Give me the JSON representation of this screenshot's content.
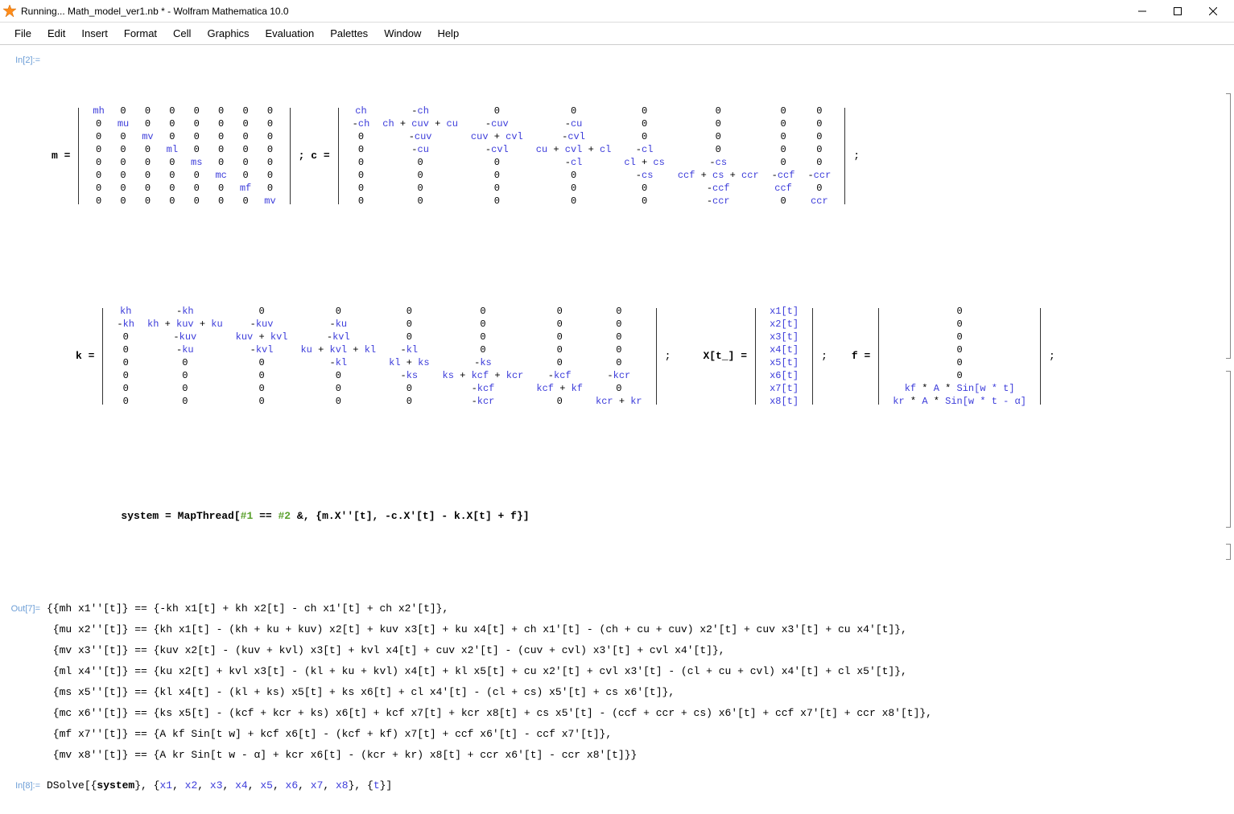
{
  "window": {
    "title": "Running... Math_model_ver1.nb * - Wolfram Mathematica 10.0",
    "icon_color": "#ff8c1a"
  },
  "menubar": [
    "File",
    "Edit",
    "Insert",
    "Format",
    "Cell",
    "Graphics",
    "Evaluation",
    "Palettes",
    "Window",
    "Help"
  ],
  "cell_labels": {
    "in2": "In[2]:=",
    "out7": "Out[7]=",
    "in8": "In[8]:="
  },
  "colors": {
    "label": "#6b9dd6",
    "symbol": "#3c3cda",
    "text": "#000000"
  },
  "matrices": {
    "m": {
      "diag": [
        "mh",
        "mu",
        "mv",
        "ml",
        "ms",
        "mc",
        "mf",
        "mv"
      ],
      "rows": 8,
      "cols": 8
    },
    "c": [
      [
        "ch",
        "-ch",
        "0",
        "0",
        "0",
        "0",
        "0",
        "0"
      ],
      [
        "-ch",
        "ch + cuv + cu",
        "-cuv",
        "-cu",
        "0",
        "0",
        "0",
        "0"
      ],
      [
        "0",
        "-cuv",
        "cuv + cvl",
        "-cvl",
        "0",
        "0",
        "0",
        "0"
      ],
      [
        "0",
        "-cu",
        "-cvl",
        "cu + cvl + cl",
        "-cl",
        "0",
        "0",
        "0"
      ],
      [
        "0",
        "0",
        "0",
        "-cl",
        "cl + cs",
        "-cs",
        "0",
        "0"
      ],
      [
        "0",
        "0",
        "0",
        "0",
        "-cs",
        "ccf + cs + ccr",
        "-ccf",
        "-ccr"
      ],
      [
        "0",
        "0",
        "0",
        "0",
        "0",
        "-ccf",
        "ccf",
        "0"
      ],
      [
        "0",
        "0",
        "0",
        "0",
        "0",
        "-ccr",
        "0",
        "ccr"
      ]
    ],
    "k": [
      [
        "kh",
        "-kh",
        "0",
        "0",
        "0",
        "0",
        "0",
        "0"
      ],
      [
        "-kh",
        "kh + kuv + ku",
        "-kuv",
        "-ku",
        "0",
        "0",
        "0",
        "0"
      ],
      [
        "0",
        "-kuv",
        "kuv + kvl",
        "-kvl",
        "0",
        "0",
        "0",
        "0"
      ],
      [
        "0",
        "-ku",
        "-kvl",
        "ku + kvl + kl",
        "-kl",
        "0",
        "0",
        "0"
      ],
      [
        "0",
        "0",
        "0",
        "-kl",
        "kl + ks",
        "-ks",
        "0",
        "0"
      ],
      [
        "0",
        "0",
        "0",
        "0",
        "-ks",
        "ks + kcf + kcr",
        "-kcf",
        "-kcr"
      ],
      [
        "0",
        "0",
        "0",
        "0",
        "0",
        "-kcf",
        "kcf + kf",
        "0"
      ],
      [
        "0",
        "0",
        "0",
        "0",
        "0",
        "-kcr",
        "0",
        "kcr + kr"
      ]
    ],
    "X": [
      "x1[t]",
      "x2[t]",
      "x3[t]",
      "x4[t]",
      "x5[t]",
      "x6[t]",
      "x7[t]",
      "x8[t]"
    ],
    "f": [
      "0",
      "0",
      "0",
      "0",
      "0",
      "0",
      "kf * A * Sin[w * t]",
      "kr * A * Sin[w * t - α]"
    ]
  },
  "defs": {
    "m_lhs": "m  =",
    "c_lhs": "; c  =",
    "semicolon": ";",
    "k_lhs": "k  =",
    "X_lhs": "X[t_]  =",
    "f_lhs": "f  =",
    "system_line": "system = MapThread[#1 == #2 &, {m.X''[t], -c.X'[t] - k.X[t] + f}]"
  },
  "out7": [
    "{{mh x1''[t]} == {-kh x1[t] + kh x2[t] - ch x1'[t] + ch x2'[t]},",
    " {mu x2''[t]} == {kh x1[t] - (kh + ku + kuv) x2[t] + kuv x3[t] + ku x4[t] + ch x1'[t] - (ch + cu + cuv) x2'[t] + cuv x3'[t] + cu x4'[t]},",
    " {mv x3''[t]} == {kuv x2[t] - (kuv + kvl) x3[t] + kvl x4[t] + cuv x2'[t] - (cuv + cvl) x3'[t] + cvl x4'[t]},",
    " {ml x4''[t]} == {ku x2[t] + kvl x3[t] - (kl + ku + kvl) x4[t] + kl x5[t] + cu x2'[t] + cvl x3'[t] - (cl + cu + cvl) x4'[t] + cl x5'[t]},",
    " {ms x5''[t]} == {kl x4[t] - (kl + ks) x5[t] + ks x6[t] + cl x4'[t] - (cl + cs) x5'[t] + cs x6'[t]},",
    " {mc x6''[t]} == {ks x5[t] - (kcf + kcr + ks) x6[t] + kcf x7[t] + kcr x8[t] + cs x5'[t] - (ccf + ccr + cs) x6'[t] + ccf x7'[t] + ccr x8'[t]},",
    " {mf x7''[t]} == {A kf Sin[t w] + kcf x6[t] - (kcf + kf) x7[t] + ccf x6'[t] - ccf x7'[t]},",
    " {mv x8''[t]} == {A kr Sin[t w - α] + kcr x6[t] - (kcr + kr) x8[t] + ccr x6'[t] - ccr x8'[t]}}"
  ],
  "in8": "DSolve[{system}, {x1, x2, x3, x4, x5, x6, x7, x8}, {t}]"
}
